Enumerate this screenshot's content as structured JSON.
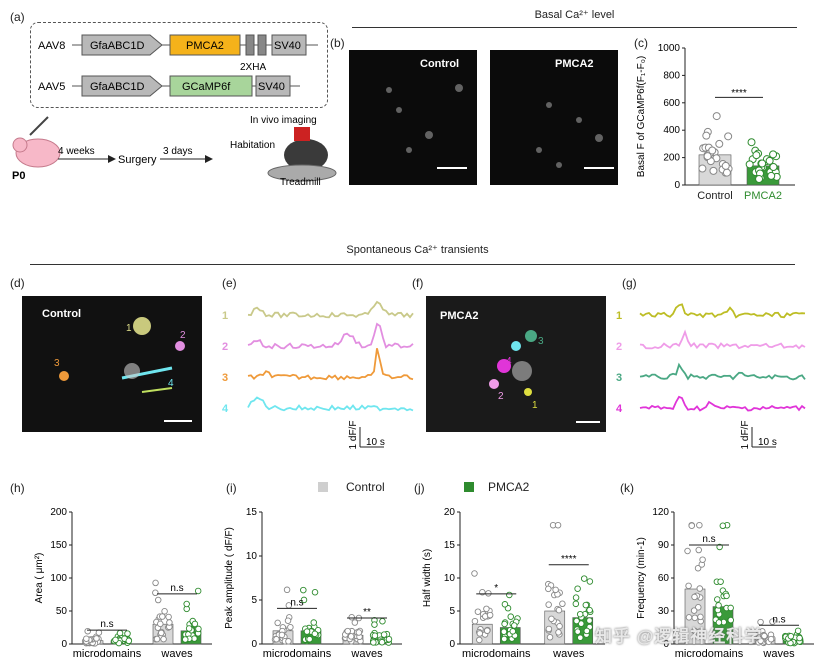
{
  "panel_letters": {
    "a": "(a)",
    "b": "(b)",
    "c": "(c)",
    "d": "(d)",
    "e": "(e)",
    "f": "(f)",
    "g": "(g)",
    "h": "(h)",
    "i": "(i)",
    "j": "(j)",
    "k": "(k)"
  },
  "section_titles": {
    "basal": "Basal Ca²⁺ level",
    "spont": "Spontaneous Ca²⁺ transients"
  },
  "constructs": [
    {
      "vector": "AAV8",
      "promoter": "GfaABC1D",
      "gene": "PMCA2",
      "tag": "2XHA",
      "polyA": "SV40",
      "gene_color": "#f5b21a"
    },
    {
      "vector": "AAV5",
      "promoter": "GfaABC1D",
      "gene": "GCaMP6f",
      "polyA": "SV40",
      "gene_color": "#a8d59b"
    }
  ],
  "timeline": {
    "start": "P0",
    "step1": "4 weeks",
    "step2": "Surgery",
    "step3": "3 days",
    "in_vivo": "In vivo imaging",
    "habituation": "Habitation",
    "treadmill": "Treadmill"
  },
  "images": {
    "control": "Control",
    "pmca2": "PMCA2"
  },
  "legend": {
    "control": "Control",
    "pmca2": "PMCA2",
    "control_color": "#cfcfcf",
    "pmca2_color": "#2e8b2e"
  },
  "traces": {
    "e_labels": [
      "1",
      "2",
      "3",
      "4"
    ],
    "e_colors": [
      "#c9c98a",
      "#e28ee0",
      "#ef9a3a",
      "#6fe6ef"
    ],
    "g_labels": [
      "1",
      "2",
      "3",
      "4"
    ],
    "g_colors": [
      "#bdbd25",
      "#ef9ce8",
      "#4aa884",
      "#e035d8"
    ],
    "scale_y": "1 dF/F",
    "scale_x": "10 s"
  },
  "roi_labels_d": [
    "1",
    "2",
    "3",
    "4"
  ],
  "roi_labels_f": [
    "1",
    "2",
    "3",
    "4"
  ],
  "chart_data": [
    {
      "panel": "c",
      "type": "bar",
      "ylabel": "Basal F of GCaMP6f(F₁-F₀)",
      "ylim": [
        0,
        1000
      ],
      "yticks": [
        0,
        200,
        400,
        600,
        800,
        1000
      ],
      "categories": [
        "Control",
        "PMCA2"
      ],
      "values": [
        220,
        140
      ],
      "significance": "****"
    },
    {
      "panel": "h",
      "type": "bar",
      "ylabel": "Area ( μm²)",
      "ylim": [
        0,
        200
      ],
      "yticks": [
        0,
        50,
        100,
        150,
        200
      ],
      "categories": [
        "microdomains",
        "waves"
      ],
      "series": [
        {
          "name": "Control",
          "values": [
            5,
            30
          ]
        },
        {
          "name": "PMCA2",
          "values": [
            5,
            20
          ]
        }
      ],
      "significance": [
        "n.s",
        "n.s"
      ]
    },
    {
      "panel": "i",
      "type": "bar",
      "ylabel": "Peak amplitude ( dF/F)",
      "ylim": [
        0,
        15
      ],
      "yticks": [
        0,
        5,
        10,
        15
      ],
      "categories": [
        "microdomains",
        "waves"
      ],
      "series": [
        {
          "name": "Control",
          "values": [
            1.5,
            1.0
          ]
        },
        {
          "name": "PMCA2",
          "values": [
            1.5,
            0.8
          ]
        }
      ],
      "significance": [
        "n.s",
        "**"
      ]
    },
    {
      "panel": "j",
      "type": "bar",
      "ylabel": "Half width (s)",
      "ylim": [
        0,
        20
      ],
      "yticks": [
        0,
        5,
        10,
        15,
        20
      ],
      "categories": [
        "microdomains",
        "waves"
      ],
      "series": [
        {
          "name": "Control",
          "values": [
            3,
            5
          ]
        },
        {
          "name": "PMCA2",
          "values": [
            2.5,
            4
          ]
        }
      ],
      "significance": [
        "*",
        "****"
      ]
    },
    {
      "panel": "k",
      "type": "bar",
      "ylabel": "Frequency (min-1)",
      "ylim": [
        0,
        120
      ],
      "yticks": [
        0,
        30,
        60,
        90,
        120
      ],
      "categories": [
        "microdomains",
        "waves"
      ],
      "series": [
        {
          "name": "Control",
          "values": [
            50,
            5
          ]
        },
        {
          "name": "PMCA2",
          "values": [
            34,
            4
          ]
        }
      ],
      "significance": [
        "n.s",
        "n.s"
      ]
    }
  ],
  "watermark": "知乎 @逻辑神经科学"
}
